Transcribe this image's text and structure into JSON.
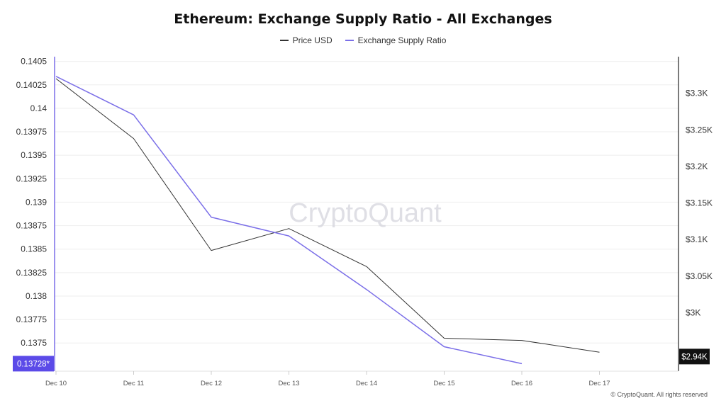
{
  "chart_data": {
    "type": "line",
    "title": "Ethereum: Exchange Supply Ratio - All Exchanges",
    "categories": [
      "Dec 10",
      "Dec 11",
      "Dec 12",
      "Dec 13",
      "Dec 14",
      "Dec 15",
      "Dec 16",
      "Dec 17"
    ],
    "series": [
      {
        "name": "Price USD",
        "axis": "right",
        "color": "#333333",
        "values": [
          3320,
          3238,
          3085,
          3115,
          3063,
          2965,
          2962,
          2946
        ]
      },
      {
        "name": "Exchange Supply Ratio",
        "axis": "left",
        "color": "#7b6fe8",
        "values": [
          0.14034,
          0.13993,
          0.13884,
          0.13864,
          0.13807,
          0.13746,
          0.13728,
          null
        ]
      }
    ],
    "left_axis": {
      "ylim": [
        0.1372,
        0.14055
      ],
      "ticks": [
        0.1405,
        0.14025,
        0.14,
        0.13975,
        0.1395,
        0.13925,
        0.139,
        0.13875,
        0.1385,
        0.13825,
        0.138,
        0.13775,
        0.1375
      ],
      "tick_labels": [
        "0.1405",
        "0.14025",
        "0.14",
        "0.13975",
        "0.1395",
        "0.13925",
        "0.139",
        "0.13875",
        "0.1385",
        "0.13825",
        "0.138",
        "0.13775",
        "0.1375"
      ],
      "current_value": 0.13728,
      "current_label": "0.13728*"
    },
    "right_axis": {
      "ylim": [
        2920,
        3350
      ],
      "ticks": [
        3300,
        3250,
        3200,
        3150,
        3100,
        3050,
        3000
      ],
      "tick_labels": [
        "$3.3K",
        "$3.25K",
        "$3.2K",
        "$3.15K",
        "$3.1K",
        "$3.05K",
        "$3K"
      ],
      "current_value": 2940,
      "current_label": "$2.94K"
    },
    "watermark": "CryptoQuant",
    "copyright": "© CryptoQuant. All rights reserved"
  }
}
